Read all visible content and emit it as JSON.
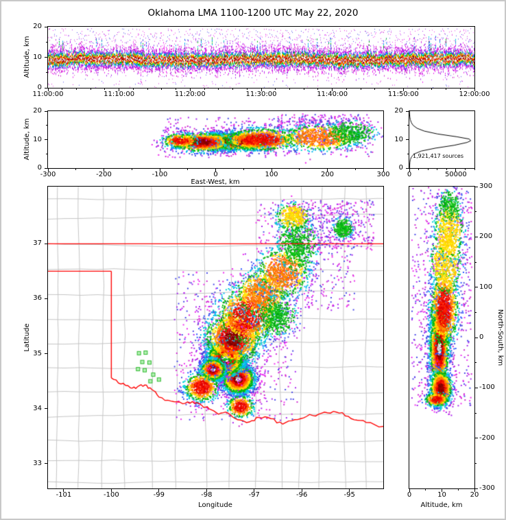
{
  "title": "Oklahoma LMA 1100-1200 UTC May 22, 2020",
  "palette": {
    "note": "VHF source-density colormap, high to low density: white/gray core, dark red, red, orange, yellow, green, cyan, blue, purple/magenta",
    "thresholds": [
      0.35,
      0.6,
      0.95,
      1.25,
      1.55,
      1.9,
      2.3,
      2.7,
      99
    ],
    "colors": [
      [
        "#ffffff",
        "#dcdcdc",
        "#9a9a9a"
      ],
      [
        "#7e0000",
        "#a00000"
      ],
      [
        "#e00000",
        "#ff1e00"
      ],
      [
        "#ff6400",
        "#ff8c00"
      ],
      [
        "#ffc800",
        "#ffe800"
      ],
      [
        "#14c814",
        "#00a814"
      ],
      [
        "#00d2d2",
        "#00b4f0"
      ],
      [
        "#2a52ff",
        "#4646dc"
      ],
      [
        "#aa22ee",
        "#cc22cc",
        "#ee22ee"
      ]
    ],
    "scatter_colors": [
      "#a828f0",
      "#d028d0",
      "#4848e8",
      "#ee30ee"
    ]
  },
  "chart_data": [
    {
      "id": "time_height",
      "type": "heatmap",
      "description": "Source altitude vs time 1100-1200 UTC; continuous dense layer centered near 9-10 km with striations, sparse sources to 20 km",
      "ylabel": "Altitude, km",
      "xlim": [
        0,
        3600
      ],
      "ylim": [
        0,
        20
      ],
      "x_axis": {
        "minor_step": 120,
        "ticks": [
          {
            "v": 0,
            "label": "11:00:00"
          },
          {
            "v": 600,
            "label": "11:10:00"
          },
          {
            "v": 1200,
            "label": "11:20:00"
          },
          {
            "v": 1800,
            "label": "11:30:00"
          },
          {
            "v": 2400,
            "label": "11:40:00"
          },
          {
            "v": 3000,
            "label": "11:50:00"
          },
          {
            "v": 3600,
            "label": "12:00:00"
          }
        ]
      },
      "y_axis": {
        "minor_step": 5,
        "ticks": [
          {
            "v": 0,
            "label": "0"
          },
          {
            "v": 10,
            "label": "10"
          },
          {
            "v": 20,
            "label": "20"
          }
        ]
      },
      "band": {
        "center_km": 9.4,
        "sd_km": 1.7,
        "col_pts_base": 16,
        "col_pts_var": 18
      }
    },
    {
      "id": "ew_height",
      "type": "heatmap",
      "xlabel": "East-West, km",
      "ylabel": "Altitude, km",
      "xlim": [
        -300,
        300
      ],
      "ylim": [
        0,
        20
      ],
      "x_axis": {
        "minor_step": 50,
        "ticks": [
          {
            "v": -300,
            "label": "-300"
          },
          {
            "v": -200,
            "label": "-200"
          },
          {
            "v": -100,
            "label": "-100"
          },
          {
            "v": 0,
            "label": "0"
          },
          {
            "v": 100,
            "label": "100"
          },
          {
            "v": 200,
            "label": "200"
          },
          {
            "v": 300,
            "label": "300"
          }
        ]
      },
      "y_axis": {
        "minor_step": 5,
        "ticks": [
          {
            "v": 0,
            "label": "0"
          },
          {
            "v": 10,
            "label": "10"
          },
          {
            "v": 20,
            "label": "20"
          }
        ]
      },
      "clusters": [
        {
          "x": 30,
          "y": 9.5,
          "sx": 33,
          "sy": 1.5,
          "n": 2600,
          "rmin": 0
        },
        {
          "x": -25,
          "y": 9.3,
          "sx": 28,
          "sy": 1.7,
          "n": 1100,
          "rmin": 0.5
        },
        {
          "x": 80,
          "y": 10.2,
          "sx": 35,
          "sy": 2.0,
          "n": 1000,
          "rmin": 0.7
        },
        {
          "x": 185,
          "y": 11.0,
          "sx": 35,
          "sy": 2.3,
          "n": 750,
          "rmin": 1.2
        },
        {
          "x": 240,
          "y": 12.5,
          "sx": 22,
          "sy": 2.0,
          "n": 350,
          "rmin": 1.8
        },
        {
          "x": -65,
          "y": 9.8,
          "sx": 16,
          "sy": 1.3,
          "n": 300,
          "rmin": 0.8
        }
      ],
      "scatter": [
        {
          "x0": -100,
          "x1": 280,
          "y0": 4,
          "y1": 18,
          "n": 420
        },
        {
          "x0": 110,
          "x1": 270,
          "y0": 11,
          "y1": 19,
          "n": 280
        }
      ]
    },
    {
      "id": "histogram",
      "type": "line",
      "annotation": "1,921,417 sources",
      "xlabel": "",
      "ylabel": "",
      "xlim": [
        0,
        70000
      ],
      "ylim": [
        0,
        20
      ],
      "x_axis": {
        "minor_step": 10000,
        "ticks": [
          {
            "v": 0,
            "label": "0"
          },
          {
            "v": 50000,
            "label": "50000"
          }
        ]
      },
      "y_axis": {
        "minor_step": 5,
        "ticks": [
          {
            "v": 0,
            "label": "0"
          },
          {
            "v": 10,
            "label": "10"
          },
          {
            "v": 20,
            "label": "20"
          }
        ]
      },
      "profile": [
        [
          0,
          250
        ],
        [
          1,
          350
        ],
        [
          2,
          600
        ],
        [
          3,
          1100
        ],
        [
          4,
          2400
        ],
        [
          5,
          5500
        ],
        [
          6,
          13000
        ],
        [
          7,
          28000
        ],
        [
          8,
          48000
        ],
        [
          9,
          62000
        ],
        [
          9.6,
          66000
        ],
        [
          10.2,
          64500
        ],
        [
          11,
          51000
        ],
        [
          12,
          30000
        ],
        [
          13,
          16000
        ],
        [
          14,
          8200
        ],
        [
          15,
          4100
        ],
        [
          16,
          2100
        ],
        [
          17,
          1100
        ],
        [
          18,
          550
        ],
        [
          19,
          260
        ],
        [
          20,
          130
        ]
      ]
    },
    {
      "id": "plan_view",
      "type": "heatmap",
      "xlabel": "Longitude",
      "ylabel": "Latitude",
      "xlim": [
        -101.33,
        -94.29
      ],
      "ylim": [
        32.55,
        38.04
      ],
      "x_axis": {
        "ticks": [
          {
            "v": -101,
            "label": "-101"
          },
          {
            "v": -100,
            "label": "-100"
          },
          {
            "v": -99,
            "label": "-99"
          },
          {
            "v": -98,
            "label": "-98"
          },
          {
            "v": -97,
            "label": "-97"
          },
          {
            "v": -96,
            "label": "-96"
          },
          {
            "v": -95,
            "label": "-95"
          }
        ]
      },
      "y_axis": {
        "ticks": [
          {
            "v": 33,
            "label": "33"
          },
          {
            "v": 34,
            "label": "34"
          },
          {
            "v": 35,
            "label": "35"
          },
          {
            "v": 36,
            "label": "36"
          },
          {
            "v": 37,
            "label": "37"
          }
        ]
      },
      "county_grid": {
        "color": "#c4c4c4",
        "lon_step": 0.5,
        "lat_step": 0.42
      },
      "state_boundary": {
        "color": "#ff0000",
        "segments": [
          {
            "wobble": false,
            "pts": [
              [
                -101.33,
                37.0
              ],
              [
                -94.29,
                37.0
              ]
            ]
          },
          {
            "wobble": false,
            "pts": [
              [
                -101.33,
                36.5
              ],
              [
                -100.0,
                36.5
              ]
            ]
          },
          {
            "wobble": false,
            "pts": [
              [
                -100.0,
                36.5
              ],
              [
                -100.0,
                34.56
              ]
            ]
          },
          {
            "wobble": true,
            "pts": [
              [
                -100.0,
                34.56
              ],
              [
                -99.8,
                34.45
              ],
              [
                -99.6,
                34.38
              ],
              [
                -99.45,
                34.4
              ],
              [
                -99.3,
                34.43
              ],
              [
                -99.15,
                34.35
              ],
              [
                -99.0,
                34.21
              ],
              [
                -98.75,
                34.14
              ],
              [
                -98.5,
                34.09
              ],
              [
                -98.3,
                34.13
              ],
              [
                -98.1,
                34.06
              ],
              [
                -97.95,
                34.0
              ],
              [
                -97.75,
                33.9
              ],
              [
                -97.55,
                33.92
              ],
              [
                -97.35,
                33.8
              ],
              [
                -97.1,
                33.76
              ],
              [
                -96.9,
                33.84
              ],
              [
                -96.65,
                33.82
              ],
              [
                -96.4,
                33.72
              ],
              [
                -96.15,
                33.8
              ],
              [
                -95.9,
                33.86
              ],
              [
                -95.65,
                33.9
              ],
              [
                -95.4,
                33.92
              ],
              [
                -95.15,
                33.93
              ],
              [
                -94.9,
                33.8
              ],
              [
                -94.65,
                33.75
              ],
              [
                -94.29,
                33.68
              ]
            ]
          }
        ]
      },
      "stations": {
        "color": "#2eb82e",
        "fill": "#b4f0b4",
        "lonlat": [
          [
            -99.42,
            35.01
          ],
          [
            -99.28,
            35.02
          ],
          [
            -99.35,
            34.85
          ],
          [
            -99.2,
            34.84
          ],
          [
            -99.44,
            34.72
          ],
          [
            -99.3,
            34.7
          ],
          [
            -99.12,
            34.62
          ],
          [
            -99.0,
            34.53
          ],
          [
            -99.18,
            34.5
          ]
        ]
      },
      "clusters": [
        {
          "x": -97.35,
          "y": 34.55,
          "sx": 0.17,
          "sy": 0.13,
          "n": 2800,
          "rmin": 0
        },
        {
          "x": -97.62,
          "y": 34.92,
          "sx": 0.2,
          "sy": 0.16,
          "n": 2400,
          "rmin": 0
        },
        {
          "x": -97.88,
          "y": 34.72,
          "sx": 0.13,
          "sy": 0.1,
          "n": 1100,
          "rmin": 0.2
        },
        {
          "x": -97.45,
          "y": 35.3,
          "sx": 0.3,
          "sy": 0.25,
          "n": 1700,
          "rmin": 0.45
        },
        {
          "x": -97.15,
          "y": 35.72,
          "sx": 0.33,
          "sy": 0.27,
          "n": 1100,
          "rmin": 0.8
        },
        {
          "x": -96.85,
          "y": 36.1,
          "sx": 0.28,
          "sy": 0.22,
          "n": 800,
          "rmin": 1.0
        },
        {
          "x": -96.4,
          "y": 36.5,
          "sx": 0.27,
          "sy": 0.23,
          "n": 800,
          "rmin": 1.0
        },
        {
          "x": -96.1,
          "y": 37.0,
          "sx": 0.2,
          "sy": 0.26,
          "n": 600,
          "rmin": 1.6
        },
        {
          "x": -96.2,
          "y": 37.5,
          "sx": 0.18,
          "sy": 0.13,
          "n": 380,
          "rmin": 1.4
        },
        {
          "x": -95.15,
          "y": 37.3,
          "sx": 0.1,
          "sy": 0.09,
          "n": 260,
          "rmin": 1.7
        },
        {
          "x": -98.12,
          "y": 34.4,
          "sx": 0.18,
          "sy": 0.13,
          "n": 650,
          "rmin": 0.9
        },
        {
          "x": -97.3,
          "y": 34.05,
          "sx": 0.14,
          "sy": 0.1,
          "n": 380,
          "rmin": 0.9
        },
        {
          "x": -96.55,
          "y": 35.7,
          "sx": 0.2,
          "sy": 0.18,
          "n": 450,
          "rmin": 1.6
        }
      ],
      "scatter": [
        {
          "x0": -96.3,
          "x1": -94.5,
          "y0": 36.9,
          "y1": 37.8,
          "n": 380
        },
        {
          "x0": -98.7,
          "x1": -96.1,
          "y0": 33.8,
          "y1": 36.5,
          "n": 550
        },
        {
          "x0": -97.0,
          "x1": -94.9,
          "y0": 35.8,
          "y1": 37.75,
          "n": 420
        }
      ]
    },
    {
      "id": "ns_height",
      "type": "heatmap",
      "xlabel": "Altitude, km",
      "ylabel": "North-South, km",
      "xlim": [
        0,
        20
      ],
      "ylim": [
        -300,
        300
      ],
      "x_axis": {
        "minor_step": 5,
        "ticks": [
          {
            "v": 0,
            "label": "0"
          },
          {
            "v": 10,
            "label": "10"
          },
          {
            "v": 20,
            "label": "20"
          }
        ]
      },
      "y_axis": {
        "side": "right",
        "minor_step": 50,
        "ticks": [
          {
            "v": 300,
            "label": "300"
          },
          {
            "v": 200,
            "label": "200"
          },
          {
            "v": 100,
            "label": "100"
          },
          {
            "v": 0,
            "label": "0"
          },
          {
            "v": -100,
            "label": "-100"
          },
          {
            "v": -200,
            "label": "-200"
          },
          {
            "v": -300,
            "label": "-300"
          }
        ]
      },
      "clusters": [
        {
          "x": 9.0,
          "y": -20,
          "sx": 1.5,
          "sy": 42,
          "n": 2600,
          "rmin": 0
        },
        {
          "x": 9.5,
          "y": -100,
          "sx": 1.7,
          "sy": 18,
          "n": 1000,
          "rmin": 0.6
        },
        {
          "x": 10.5,
          "y": 60,
          "sx": 2.2,
          "sy": 40,
          "n": 1200,
          "rmin": 0.7
        },
        {
          "x": 11.0,
          "y": 155,
          "sx": 2.4,
          "sy": 35,
          "n": 650,
          "rmin": 1.3
        },
        {
          "x": 12.0,
          "y": 215,
          "sx": 2.3,
          "sy": 30,
          "n": 550,
          "rmin": 1.4
        },
        {
          "x": 12.0,
          "y": 262,
          "sx": 1.8,
          "sy": 16,
          "n": 220,
          "rmin": 1.8
        },
        {
          "x": 8.2,
          "y": -122,
          "sx": 1.8,
          "sy": 7,
          "n": 280,
          "rmin": 0.9
        }
      ],
      "scatter": [
        {
          "x0": 0.5,
          "x1": 19,
          "y0": -135,
          "y1": 300,
          "n": 600
        }
      ]
    }
  ]
}
